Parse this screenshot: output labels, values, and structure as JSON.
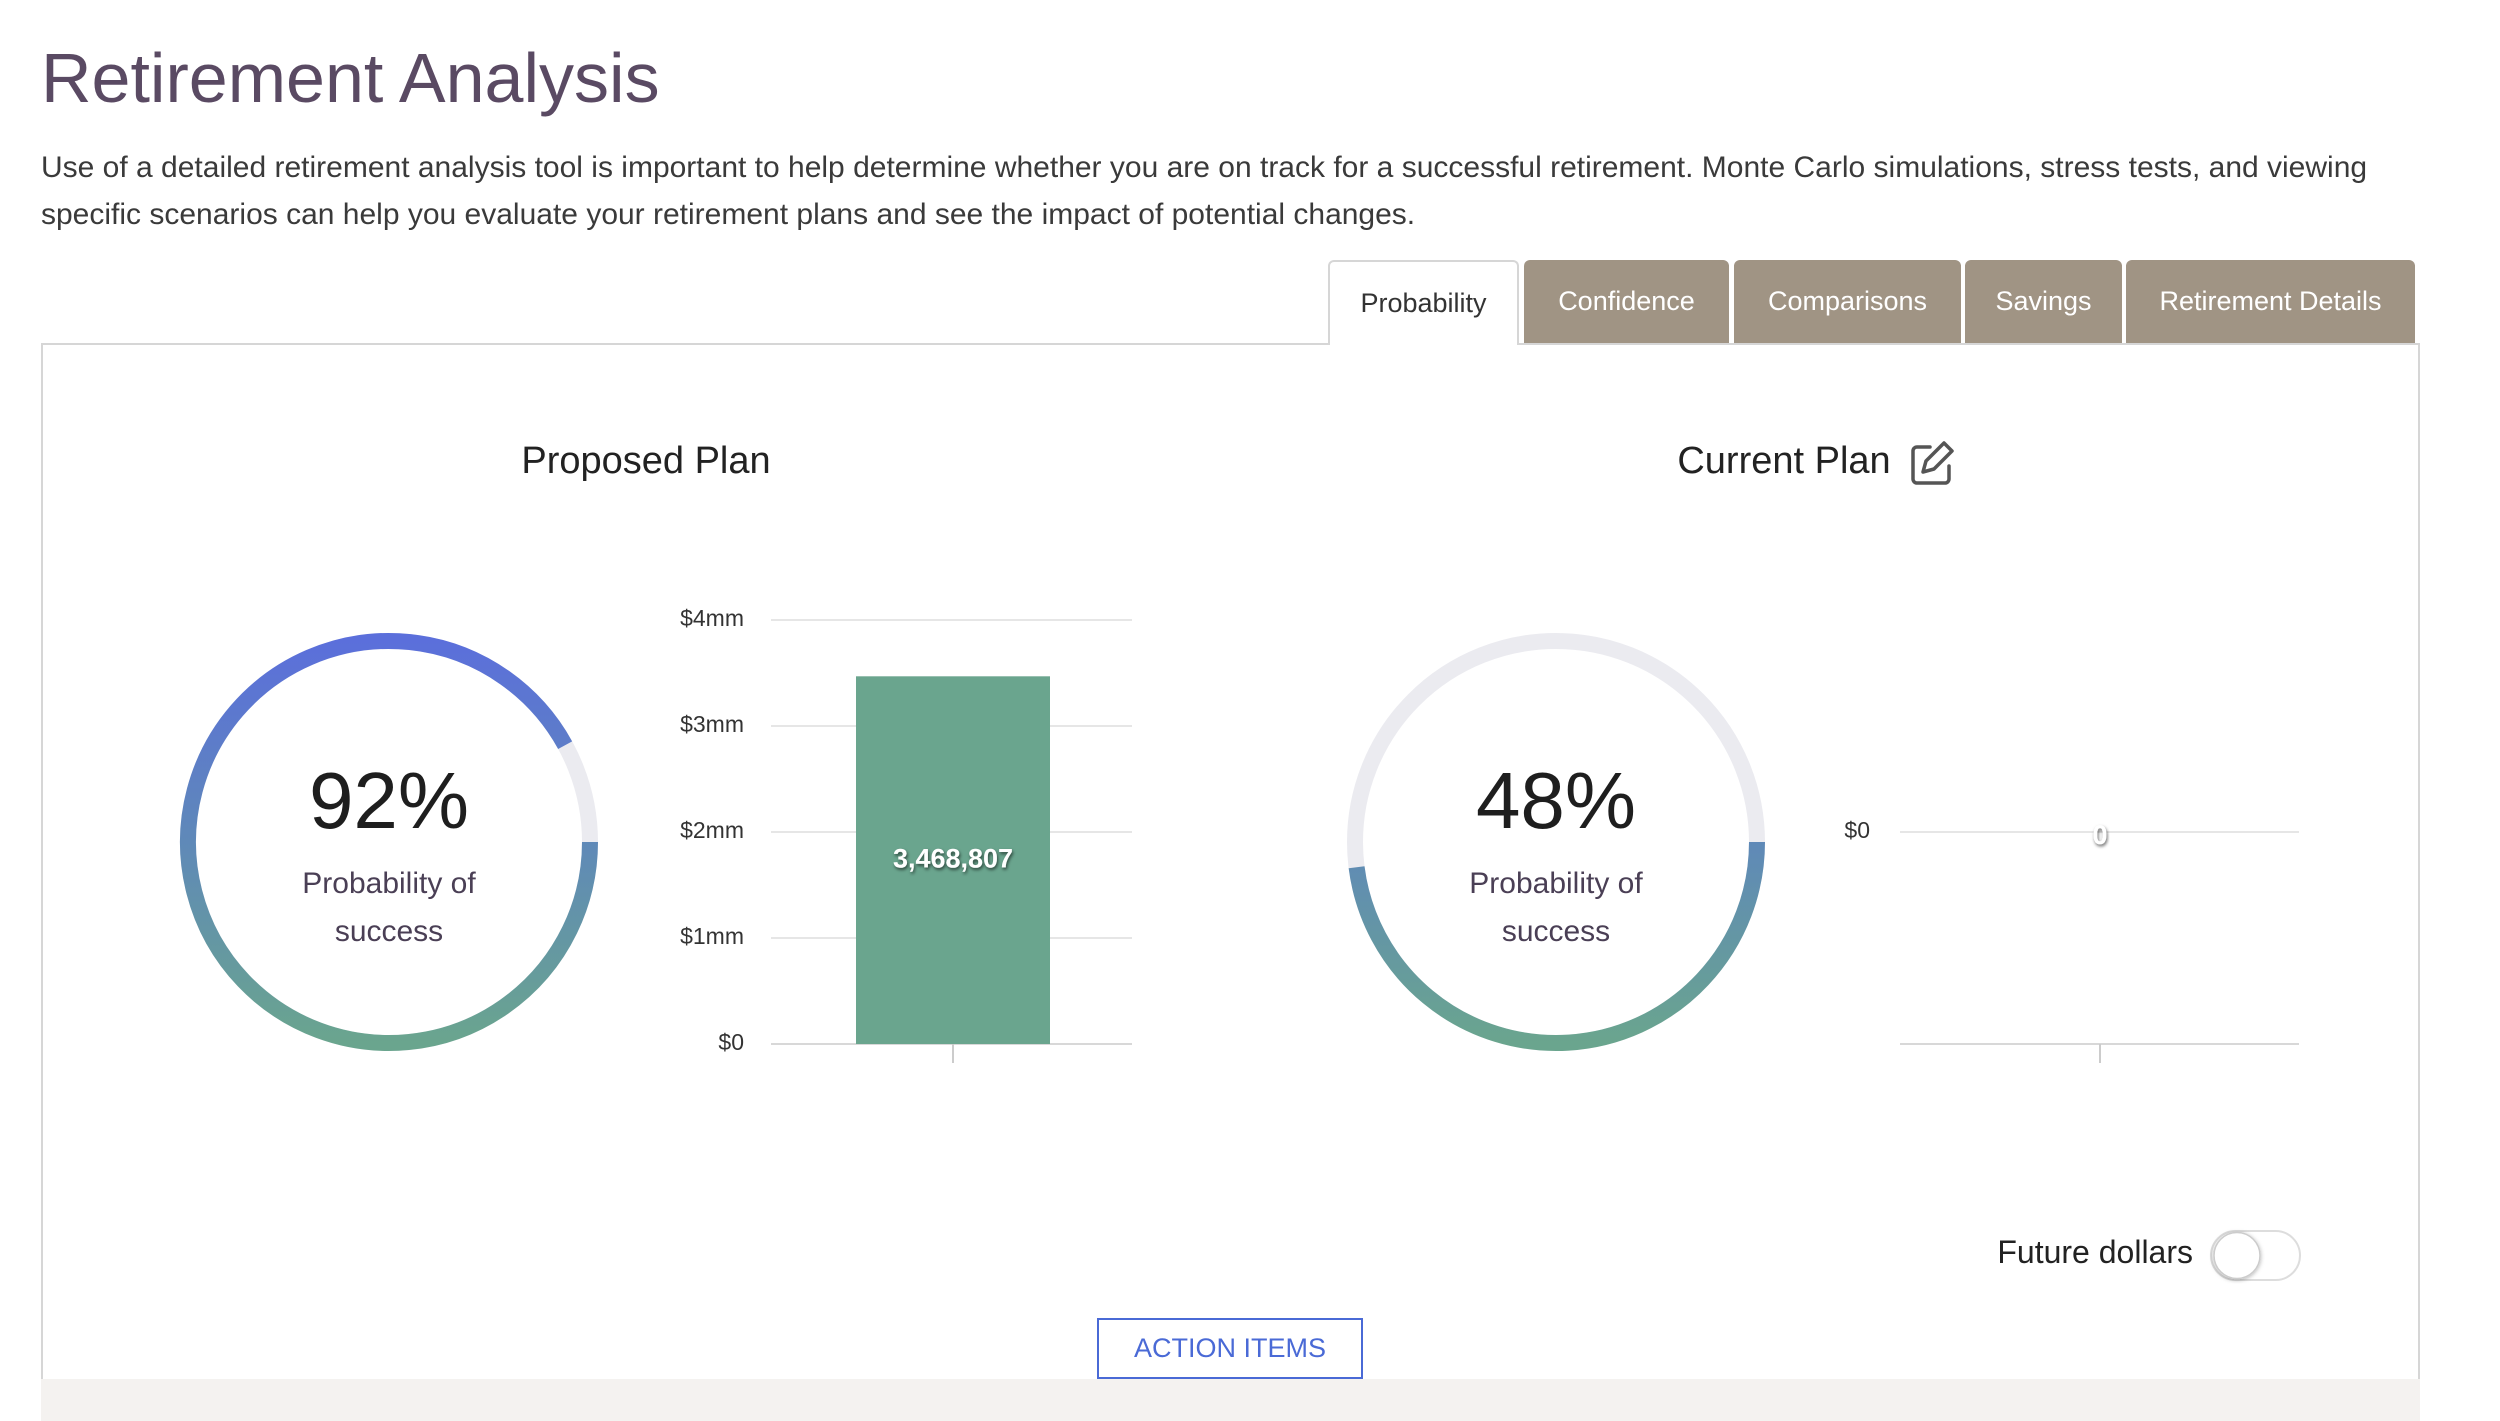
{
  "header": {
    "title": "Retirement Analysis",
    "description": "Use of a detailed retirement analysis tool is important to help determine whether you are on track for a successful retirement. Monte Carlo simulations, stress tests, and viewing specific scenarios can help you evaluate your retirement plans and see the impact of potential changes."
  },
  "tabs": [
    "Probability",
    "Confidence",
    "Comparisons",
    "Savings",
    "Retirement Details"
  ],
  "proposed_plan": {
    "title": "Proposed Plan",
    "gauge": {
      "value": 92,
      "value_label": "92%",
      "caption": "Probability of success"
    },
    "chart": {
      "type": "bar",
      "values": [
        3468807
      ],
      "value_labels": [
        "3,468,807"
      ],
      "color": "#6aa58e",
      "ylim": [
        0,
        4000000
      ],
      "yticks": [
        {
          "value": 0,
          "label": "$0"
        },
        {
          "value": 1000000,
          "label": "$1mm"
        },
        {
          "value": 2000000,
          "label": "$2mm"
        },
        {
          "value": 3000000,
          "label": "$3mm"
        },
        {
          "value": 4000000,
          "label": "$4mm"
        }
      ]
    }
  },
  "current_plan": {
    "title": "Current Plan",
    "gauge": {
      "value": 48,
      "value_label": "48%",
      "caption": "Probability of success"
    },
    "chart": {
      "type": "bar",
      "values": [
        0
      ],
      "value_labels": [
        "0"
      ],
      "color": "#6aa58e",
      "ylim": [
        -1,
        1
      ],
      "yticks": [
        {
          "value": 0,
          "label": "$0"
        }
      ]
    }
  },
  "toggle": {
    "label": "Future dollars"
  },
  "button": {
    "label": "ACTION ITEMS"
  }
}
